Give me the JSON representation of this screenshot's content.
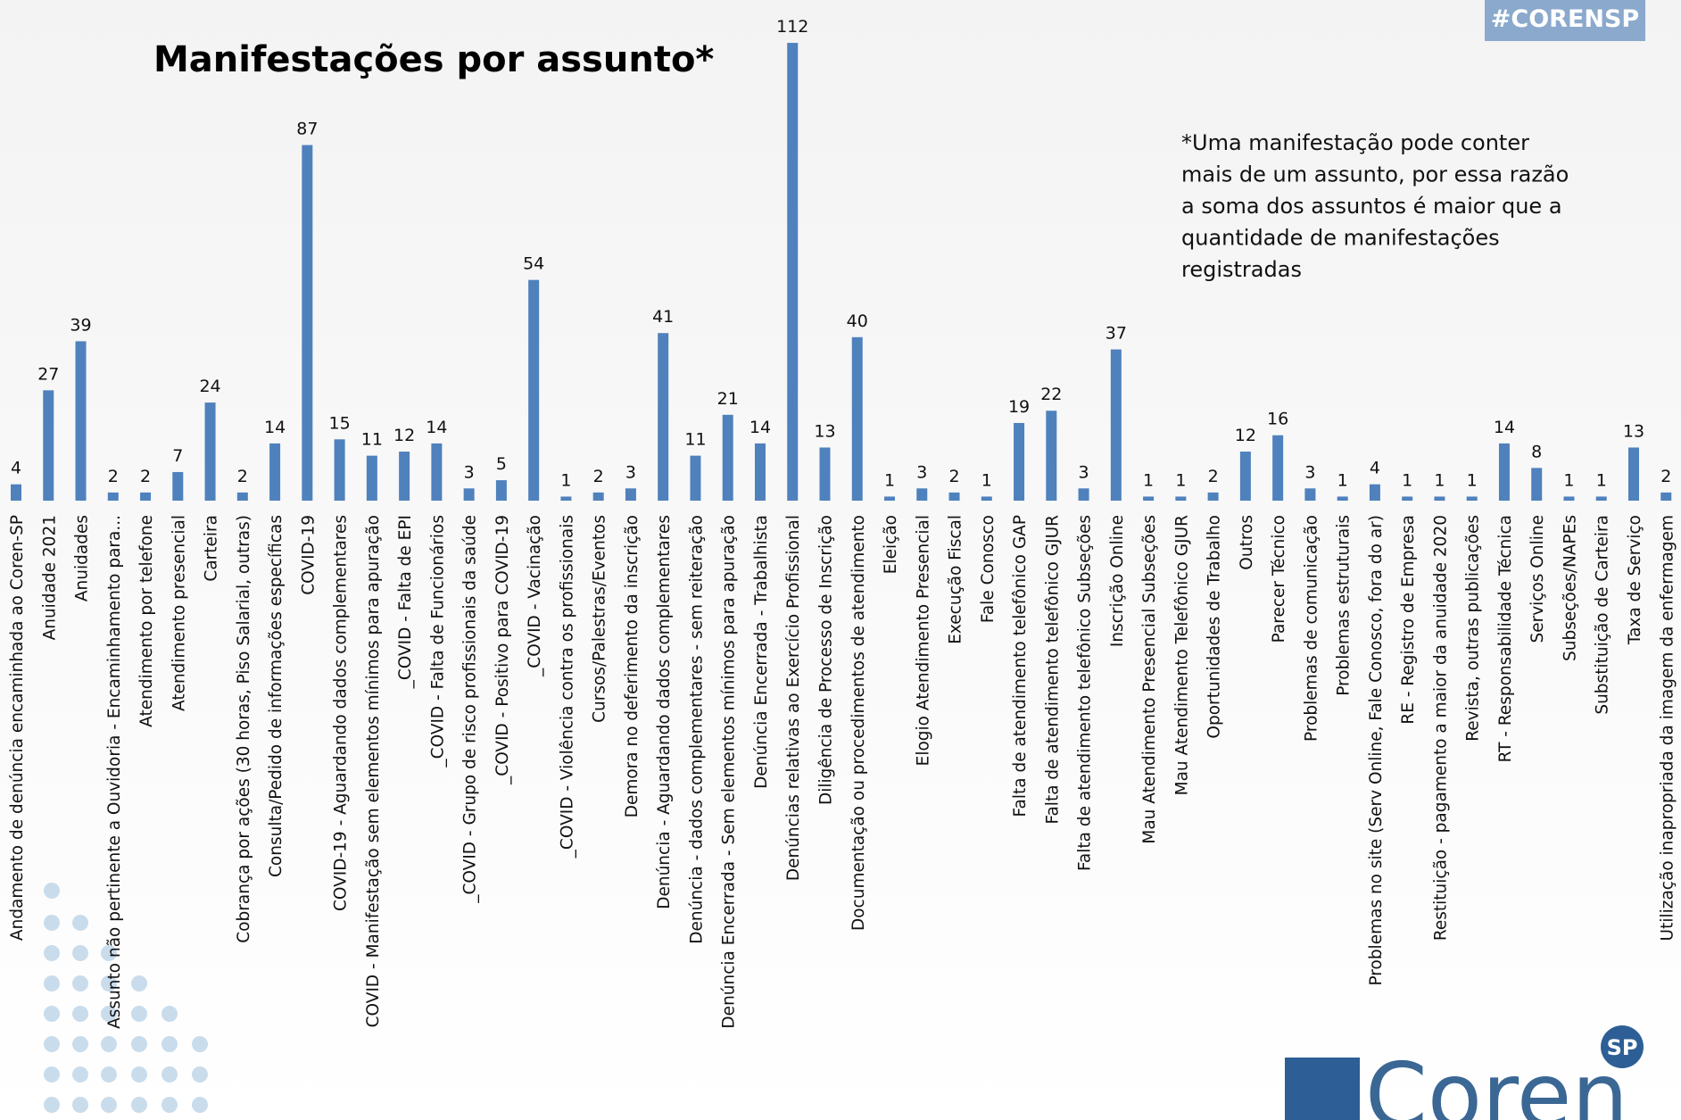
{
  "chart_data": {
    "type": "bar",
    "title": "Manifestações por assunto*",
    "note": [
      "*Uma manifestação pode conter",
      "mais de um assunto, por essa razão",
      "a soma dos assuntos é maior que a",
      "quantidade de manifestações",
      "registradas"
    ],
    "color": "#4f81bd",
    "categories": [
      "Andamento de denúncia encaminhada ao Coren-SP",
      "Anuidade 2021",
      "Anuidades",
      "Assunto não pertinente a Ouvidoria - Encaminhamento para...",
      "Atendimento por telefone",
      "Atendimento presencial",
      "Carteira",
      "Cobrança por ações (30 horas, Piso Salarial, outras)",
      "Consulta/Pedido de informações específicas",
      "COVID-19",
      "COVID-19 - Aguardando dados complementares",
      "COVID - Manifestação sem elementos mínimos para apuração",
      "_COVID - Falta de EPI",
      "_COVID - Falta de Funcionários",
      "_COVID - Grupo de risco profissionais da saúde",
      "_COVID - Positivo para COVID-19",
      "_COVID - Vacinação",
      "_COVID - Violência contra os profissionais",
      "Cursos/Palestras/Eventos",
      "Demora no deferimento da inscrição",
      "Denúncia - Aguardando dados complementares",
      "Denúncia - dados complementares - sem reiteração",
      "Denúncia Encerrada - Sem elementos mínimos para apuração",
      "Denúncia Encerrada - Trabalhista",
      "Denúncias relativas ao Exercício Profissional",
      "Diligência de Processo de Inscrição",
      "Documentação ou procedimentos de atendimento",
      "Eleição",
      "Elogio Atendimento Presencial",
      "Execução Fiscal",
      "Fale Conosco",
      "Falta de atendimento telefônico GAP",
      "Falta de atendimento telefônico GJUR",
      "Falta de atendimento telefônico Subseções",
      "Inscrição Online",
      "Mau Atendimento Presencial Subseções",
      "Mau Atendimento Telefônico GJUR",
      "Oportunidades de Trabalho",
      "Outros",
      "Parecer Técnico",
      "Problemas de comunicação",
      "Problemas estruturais",
      "Problemas no site (Serv Online, Fale Conosco, fora do ar)",
      "RE - Registro de Empresa",
      "Restituição - pagamento a maior da anuidade 2020",
      "Revista, outras publicações",
      "RT - Responsabilidade Técnica",
      "Serviços Online",
      "Subseções/NAPEs",
      "Substituição de Carteira",
      "Taxa de Serviço",
      "Utilização inapropriada da imagem da enfermagem"
    ],
    "values": [
      4,
      27,
      39,
      2,
      2,
      7,
      24,
      2,
      14,
      87,
      15,
      11,
      12,
      14,
      3,
      5,
      54,
      1,
      2,
      3,
      41,
      11,
      21,
      14,
      112,
      13,
      40,
      1,
      3,
      2,
      1,
      19,
      22,
      3,
      37,
      1,
      1,
      2,
      12,
      16,
      3,
      1,
      4,
      1,
      1,
      1,
      14,
      8,
      1,
      1,
      13,
      2
    ]
  },
  "brand": {
    "hashtag": "#CORENSP",
    "logo": "Coren",
    "logo_sup": "SP"
  }
}
